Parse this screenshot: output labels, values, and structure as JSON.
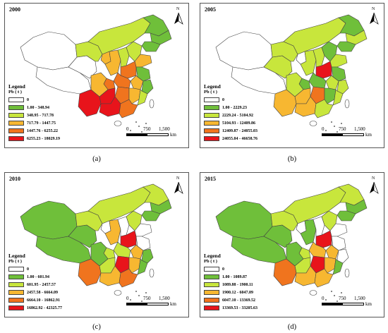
{
  "panels": [
    {
      "year": "2000",
      "caption": "(a)",
      "legend_title": "Legend",
      "legend_subtitle": "Pb ( t )",
      "legend": [
        "0",
        "1.00 - 348.94",
        "348.95 - 717.78",
        "717.79 - 1447.75",
        "1447.76 - 6255.22",
        "6255.23 - 18029.19"
      ],
      "region_classes": {
        "xinjiang": 0,
        "tibet": 0,
        "qinghai": 0,
        "gansu": 2,
        "inner_mongolia": 2,
        "heilongjiang": 1,
        "jilin": 1,
        "liaoning": 1,
        "ningxia": 3,
        "shaanxi": 3,
        "shanxi": 2,
        "hebei": 2,
        "henan": 4,
        "shandong": 3,
        "jiangsu": 1,
        "anhui": 3,
        "sichuan": 3,
        "chongqing": 4,
        "hubei": 4,
        "hunan": 4,
        "jiangxi": 3,
        "zhejiang": 1,
        "fujian": 2,
        "yunnan": 5,
        "guizhou": 5,
        "guangxi": 5,
        "guangdong": 4
      }
    },
    {
      "year": "2005",
      "caption": "(b)",
      "legend_title": "Legend",
      "legend_subtitle": "Pb ( t )",
      "legend": [
        "0",
        "1.00 - 2229.23",
        "2229.24 - 5104.92",
        "5104.93 - 12409.86",
        "12409.87 - 24055.03",
        "24055.04 - 46658.76"
      ],
      "region_classes": {
        "xinjiang": 0,
        "tibet": 0,
        "qinghai": 2,
        "gansu": 2,
        "inner_mongolia": 2,
        "heilongjiang": 1,
        "jilin": 2,
        "liaoning": 1,
        "ningxia": 0,
        "shaanxi": 2,
        "shanxi": 2,
        "hebei": 1,
        "henan": 5,
        "shandong": 2,
        "jiangsu": 1,
        "anhui": 2,
        "sichuan": 2,
        "chongqing": 1,
        "hubei": 1,
        "hunan": 4,
        "jiangxi": 1,
        "zhejiang": 2,
        "fujian": 2,
        "yunnan": 3,
        "guizhou": 3,
        "guangxi": 3,
        "guangdong": 2
      }
    },
    {
      "year": "2010",
      "caption": "(c)",
      "legend_title": "Legend",
      "legend_subtitle": "Pb ( t )",
      "legend": [
        "0",
        "1.00 - 601.94",
        "601.95 - 2457.57",
        "2457.58 - 6664.09",
        "6664.10 - 16862.91",
        "16862.92 - 42325.77"
      ],
      "region_classes": {
        "xinjiang": 1,
        "tibet": 1,
        "qinghai": 1,
        "gansu": 2,
        "inner_mongolia": 2,
        "heilongjiang": 2,
        "jilin": 1,
        "liaoning": 1,
        "ningxia": 0,
        "shaanxi": 3,
        "shanxi": 0,
        "hebei": 2,
        "henan": 5,
        "shandong": 0,
        "jiangsu": 0,
        "anhui": 3,
        "sichuan": 1,
        "chongqing": 2,
        "hubei": 2,
        "hunan": 5,
        "jiangxi": 3,
        "zhejiang": 1,
        "fujian": 1,
        "yunnan": 4,
        "guizhou": 2,
        "guangxi": 3,
        "guangdong": 4
      }
    },
    {
      "year": "2015",
      "caption": "(d)",
      "legend_title": "Legend",
      "legend_subtitle": "Pb ( t )",
      "legend": [
        "0",
        "1.00 - 1089.87",
        "1089.88 - 1900.11",
        "1900.12 - 6047.09",
        "6047.10 - 13369.52",
        "13369.53 - 33205.63"
      ],
      "region_classes": {
        "xinjiang": 1,
        "tibet": 1,
        "qinghai": 1,
        "gansu": 2,
        "inner_mongolia": 2,
        "heilongjiang": 2,
        "jilin": 1,
        "liaoning": 1,
        "ningxia": 0,
        "shaanxi": 1,
        "shanxi": 0,
        "hebei": 2,
        "henan": 5,
        "shandong": 0,
        "jiangsu": 0,
        "anhui": 3,
        "sichuan": 1,
        "chongqing": 2,
        "hubei": 3,
        "hunan": 5,
        "jiangxi": 3,
        "zhejiang": 0,
        "fujian": 1,
        "yunnan": 4,
        "guizhou": 2,
        "guangxi": 3,
        "guangdong": 3
      }
    }
  ],
  "class_colors": [
    "#ffffff",
    "#6fbf3a",
    "#c8e63c",
    "#f7b731",
    "#f0741e",
    "#e8141b"
  ],
  "north_label": "N",
  "scale": {
    "ticks": [
      "0",
      "750",
      "1,500"
    ],
    "unit": "km"
  }
}
